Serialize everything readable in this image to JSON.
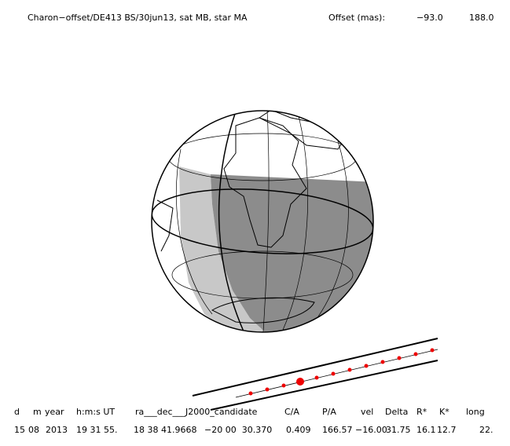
{
  "header": {
    "title": "Charon−offset/DE413 BS/30jun13, sat MB, star MA",
    "offset_label": "Offset (mas):",
    "offset_values": [
      "−93.0",
      "188.0"
    ]
  },
  "table": {
    "columns": [
      "d",
      "m",
      "year",
      "h:m:s UT",
      "ra___dec___J2000_candidate",
      "C/A",
      "P/A",
      "vel",
      "Delta",
      "R*",
      "K*",
      "long"
    ],
    "rows": [
      [
        "15",
        "08",
        "2013",
        "19 31 55.",
        "18 38 41.9668",
        "−20 00  30.370",
        "0.409",
        "166.57",
        "−16.00",
        "31.75",
        "16.1",
        "12.7",
        "22."
      ]
    ]
  }
}
